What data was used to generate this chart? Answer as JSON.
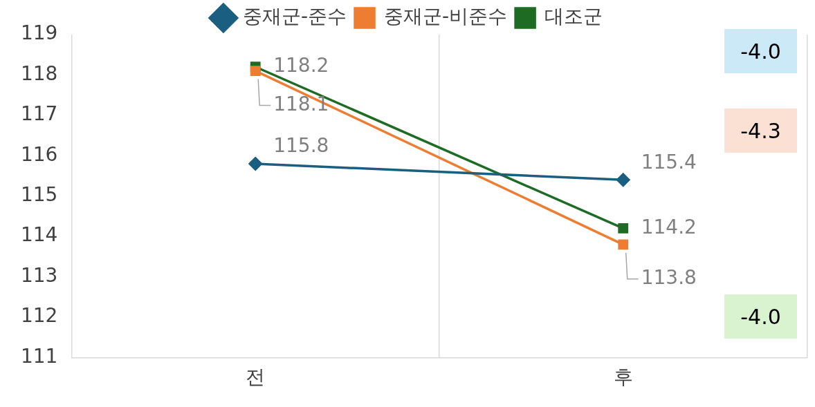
{
  "chart_data": {
    "type": "line",
    "categories": [
      "전",
      "후"
    ],
    "series": [
      {
        "name": "중재군-준수",
        "color": "#1a5e80",
        "marker": "diamond",
        "values": [
          115.8,
          115.4
        ]
      },
      {
        "name": "중재군-비준수",
        "color": "#ed7d31",
        "marker": "square",
        "values": [
          118.1,
          113.8
        ]
      },
      {
        "name": "대조군",
        "color": "#1e6b24",
        "marker": "square",
        "values": [
          118.2,
          114.2
        ]
      }
    ],
    "ylim": [
      111,
      119
    ],
    "yticks": [
      111,
      112,
      113,
      114,
      115,
      116,
      117,
      118,
      119
    ],
    "grid": "x",
    "legend": "top",
    "data_labels": true,
    "line_style": "solid",
    "annotations": [
      "-4.0",
      "-4.3",
      "-4.0"
    ]
  }
}
